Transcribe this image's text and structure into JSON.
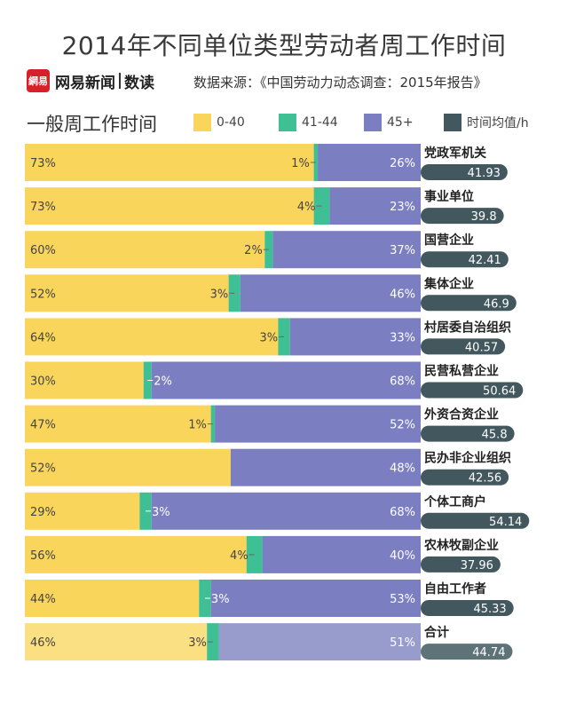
{
  "header": {
    "title": "2014年不同单位类型劳动者周工作时间",
    "brand_logo": "網易",
    "brand_name": "网易新闻",
    "brand_sub": "数读",
    "source": "数据来源：《中国劳动力动态调查：2015年报告》",
    "subtitle": "一般周工作时间"
  },
  "colors": {
    "c1": "#f9d55b",
    "c2": "#3fbf94",
    "c3": "#7b7fc2",
    "avg": "#42585e",
    "c1_light": "#fadf83",
    "c3_light": "#989ccd",
    "avg_light": "#5e7378"
  },
  "chart_data": {
    "type": "bar",
    "stacked": true,
    "orientation": "horizontal",
    "title": "2014年不同单位类型劳动者周工作时间",
    "legend": [
      "0-40",
      "41-44",
      "45+",
      "时间均值/h"
    ],
    "categories": [
      "党政军机关",
      "事业单位",
      "国营企业",
      "集体企业",
      "村居委自治组织",
      "民营私营企业",
      "外资合资企业",
      "民办非企业组织",
      "个体工商户",
      "农林牧副企业",
      "自由工作者",
      "合计"
    ],
    "series": [
      {
        "name": "0-40",
        "values": [
          73,
          73,
          60,
          52,
          64,
          30,
          47,
          52,
          29,
          56,
          44,
          46
        ]
      },
      {
        "name": "41-44",
        "values": [
          1,
          4,
          2,
          3,
          3,
          2,
          1,
          0,
          3,
          4,
          3,
          3
        ]
      },
      {
        "name": "45+",
        "values": [
          26,
          23,
          37,
          46,
          33,
          68,
          52,
          48,
          68,
          40,
          53,
          51
        ]
      }
    ],
    "labels": {
      "0-40": [
        "73%",
        "73%",
        "60%",
        "52%",
        "64%",
        "30%",
        "47%",
        "52%",
        "29%",
        "56%",
        "44%",
        "46%"
      ],
      "41-44": [
        "1%",
        "4%",
        "2%",
        "3%",
        "3%",
        "2%",
        "1%",
        "",
        "3%",
        "4%",
        "3%",
        "3%"
      ],
      "45+": [
        "26%",
        "23%",
        "37%",
        "46%",
        "33%",
        "68%",
        "52%",
        "48%",
        "68%",
        "40%",
        "53%",
        "51%"
      ]
    },
    "avg_hours": [
      41.93,
      39.8,
      42.41,
      46.9,
      40.57,
      50.64,
      45.8,
      42.56,
      54.14,
      37.96,
      45.33,
      44.74
    ],
    "avg_labels": [
      "41.93",
      "39.8",
      "42.41",
      "46.9",
      "40.57",
      "50.64",
      "45.8",
      "42.56",
      "54.14",
      "37.96",
      "45.33",
      "44.74"
    ],
    "xlim": [
      0,
      100
    ],
    "avg_range": [
      0,
      60
    ]
  }
}
